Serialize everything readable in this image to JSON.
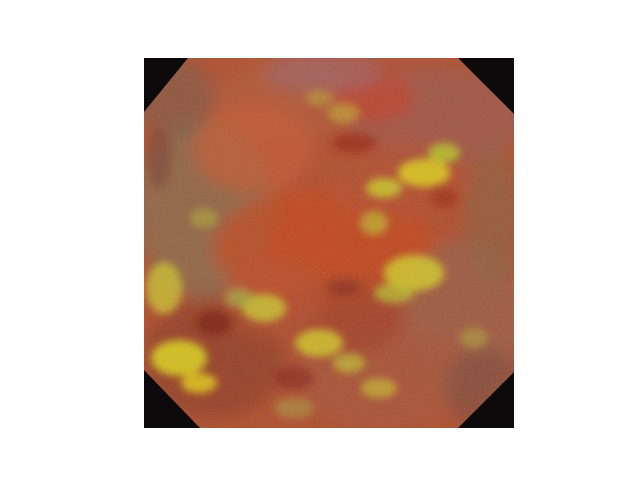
{
  "image": {
    "kind": "generated-texture",
    "background_color": "#ffffff",
    "corner_color": "#0c0a0a",
    "palette": {
      "base": "#b5502c",
      "rust": "#c2401c",
      "deep_red": "#8c2a14",
      "olive": "#8a6a3a",
      "grey_brown": "#7a5a4a",
      "yellow": "#d8d020",
      "lime": "#b8c828",
      "mauve": "#9a6a7a"
    }
  }
}
